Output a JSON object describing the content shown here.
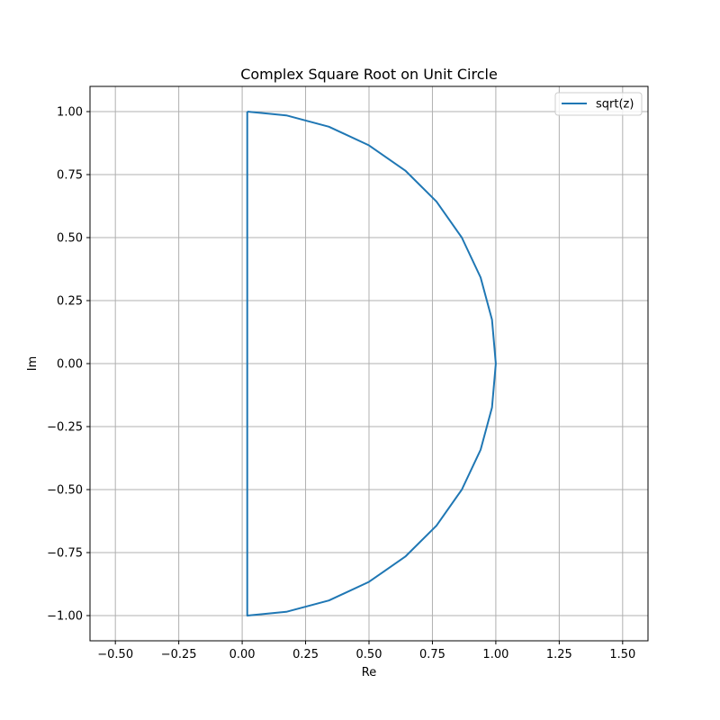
{
  "chart_data": {
    "type": "line",
    "title": "Complex Square Root on Unit Circle",
    "xlabel": "Re",
    "ylabel": "Im",
    "xlim": [
      -0.6,
      1.6
    ],
    "ylim": [
      -1.1,
      1.1
    ],
    "xticks": [
      -0.5,
      -0.25,
      0.0,
      0.25,
      0.5,
      0.75,
      1.0,
      1.25,
      1.5
    ],
    "xtick_labels": [
      "−0.50",
      "−0.25",
      "0.00",
      "0.25",
      "0.50",
      "0.75",
      "1.00",
      "1.25",
      "1.50"
    ],
    "yticks": [
      -1.0,
      -0.75,
      -0.5,
      -0.25,
      0.0,
      0.25,
      0.5,
      0.75,
      1.0
    ],
    "ytick_labels": [
      "−1.00",
      "−0.75",
      "−0.50",
      "−0.25",
      "0.00",
      "0.25",
      "0.50",
      "0.75",
      "1.00"
    ],
    "grid": true,
    "legend_position": "top-right",
    "series": [
      {
        "name": "sqrt(z)",
        "color": "#1f77b4",
        "x": [
          0.02,
          0.174,
          0.342,
          0.5,
          0.643,
          0.766,
          0.866,
          0.94,
          0.985,
          1.0,
          0.985,
          0.94,
          0.866,
          0.766,
          0.643,
          0.5,
          0.342,
          0.174,
          0.02,
          0.02,
          0.02
        ],
        "y": [
          1.0,
          0.985,
          0.94,
          0.866,
          0.766,
          0.643,
          0.5,
          0.342,
          0.174,
          0.0,
          -0.174,
          -0.342,
          -0.5,
          -0.643,
          -0.766,
          -0.866,
          -0.94,
          -0.985,
          -1.0,
          0.0,
          1.0
        ]
      }
    ]
  }
}
